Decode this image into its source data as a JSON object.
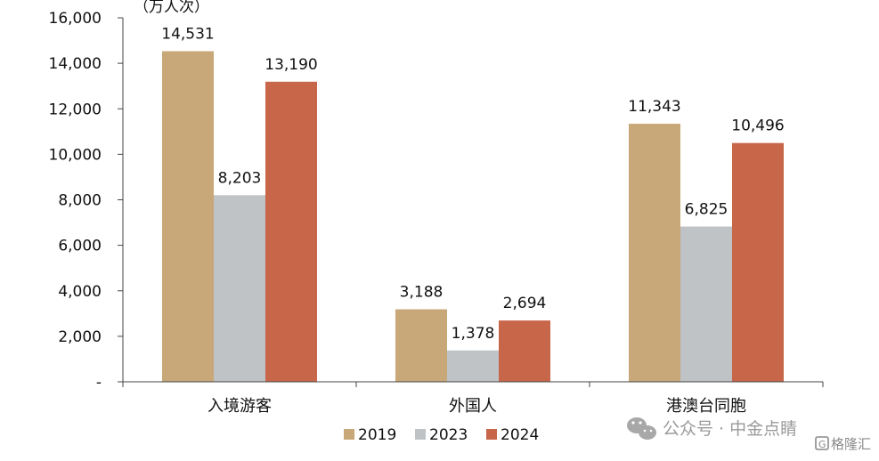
{
  "chart_data": {
    "type": "bar",
    "unit_label": "（万人次）",
    "categories": [
      "入境游客",
      "外国人",
      "港澳台同胞"
    ],
    "series": [
      {
        "name": "2019",
        "color": "#C8A878",
        "values": [
          14531,
          3188,
          11343
        ],
        "labels": [
          "14,531",
          "3,188",
          "11,343"
        ]
      },
      {
        "name": "2023",
        "color": "#BFC3C6",
        "values": [
          8203,
          1378,
          6825
        ],
        "labels": [
          "8,203",
          "1,378",
          "6,825"
        ]
      },
      {
        "name": "2024",
        "color": "#C8664A",
        "values": [
          13190,
          2694,
          10496
        ],
        "labels": [
          "13,190",
          "2,694",
          "10,496"
        ]
      }
    ],
    "ylim": [
      0,
      16000
    ],
    "yticks": [
      0,
      2000,
      4000,
      6000,
      8000,
      10000,
      12000,
      14000,
      16000
    ],
    "ytick_labels": [
      "-",
      "2,000",
      "4,000",
      "6,000",
      "8,000",
      "10,000",
      "12,000",
      "14,000",
      "16,000"
    ],
    "grid": false,
    "legend_position": "bottom-center"
  },
  "watermark": {
    "text": "公众号 · 中金点睛",
    "icon": "wechat-icon",
    "brand_text": "格隆汇",
    "brand_icon": "gelonghui-logo-icon"
  }
}
